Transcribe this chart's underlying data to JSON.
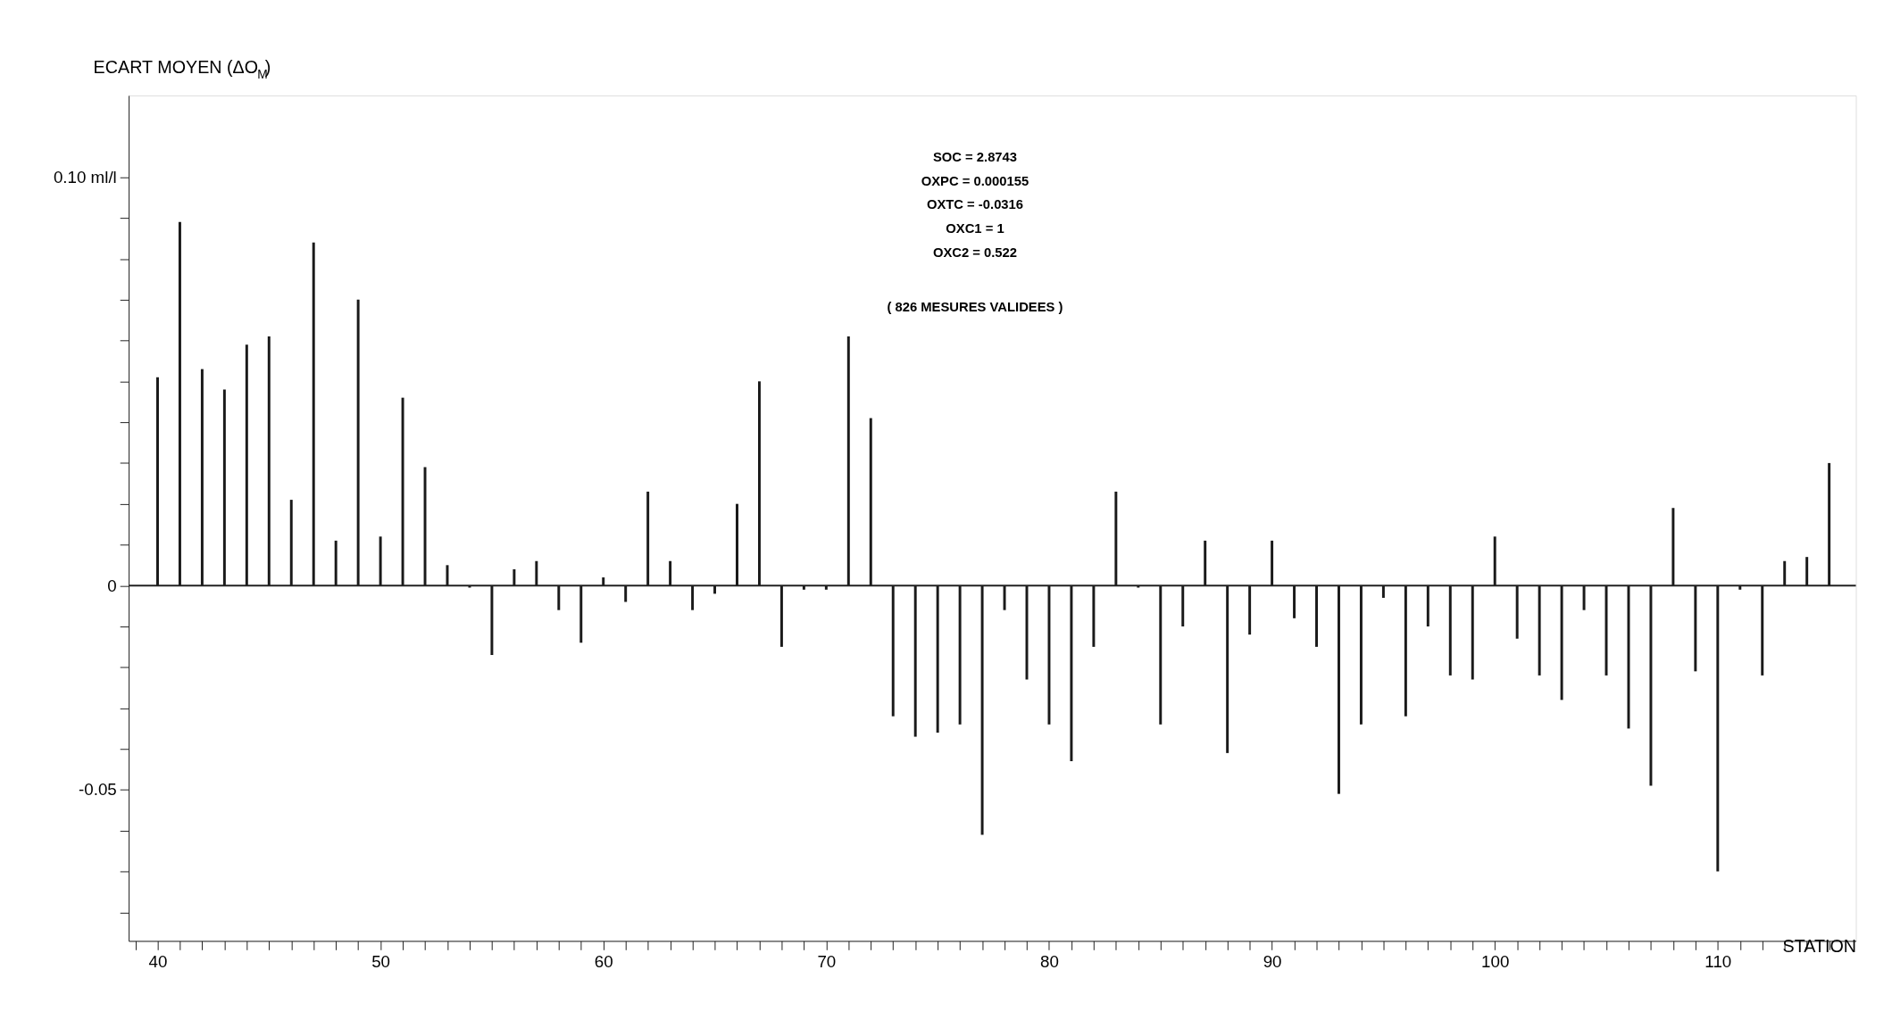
{
  "chart_data": {
    "type": "bar",
    "xlabel": "STATION",
    "ylabel": "ECART MOYEN (ΔO$_{M}$)",
    "annotations": [
      "SOC = 2.8743",
      "OXPC = 0.000155",
      "OXTC = -0.0316",
      "OXC1 = 1",
      "OXC2 = 0.522",
      "( 826 MESURES VALIDEES )"
    ],
    "x": [
      40,
      41,
      42,
      43,
      44,
      45,
      46,
      47,
      48,
      49,
      50,
      51,
      52,
      53,
      54,
      55,
      56,
      57,
      58,
      59,
      60,
      61,
      62,
      63,
      64,
      65,
      66,
      67,
      68,
      69,
      70,
      71,
      72,
      73,
      74,
      75,
      76,
      77,
      78,
      79,
      80,
      81,
      82,
      83,
      84,
      85,
      86,
      87,
      88,
      89,
      90,
      91,
      92,
      93,
      94,
      95,
      96,
      97,
      98,
      99,
      100,
      101,
      102,
      103,
      104,
      105,
      106,
      107,
      108,
      109,
      110,
      111,
      112,
      113,
      114,
      115
    ],
    "values": [
      0.051,
      0.089,
      0.053,
      0.048,
      0.059,
      0.061,
      0.021,
      0.084,
      0.011,
      0.07,
      0.012,
      0.046,
      0.029,
      0.005,
      -0.0005,
      -0.017,
      0.004,
      0.006,
      -0.006,
      -0.014,
      0.002,
      -0.004,
      0.023,
      0.006,
      -0.006,
      -0.002,
      0.02,
      0.05,
      -0.015,
      -0.001,
      -0.001,
      0.061,
      0.041,
      -0.032,
      -0.037,
      -0.036,
      -0.034,
      -0.061,
      -0.006,
      -0.023,
      -0.034,
      -0.043,
      -0.015,
      0.023,
      -0.0005,
      -0.034,
      -0.01,
      0.011,
      -0.041,
      -0.012,
      0.011,
      -0.008,
      -0.015,
      -0.051,
      -0.034,
      -0.003,
      -0.032,
      -0.01,
      -0.022,
      -0.023,
      0.012,
      -0.013,
      -0.022,
      -0.028,
      -0.006,
      -0.022,
      -0.035,
      -0.049,
      0.019,
      -0.021,
      -0.07,
      -0.001,
      -0.022,
      0.006,
      0.007,
      0.03
    ],
    "color": "#1a1a1a",
    "xlim": [
      38.9,
      116
    ],
    "xticks": [
      {
        "value": 39,
        "label": null
      },
      40,
      {
        "value": 41,
        "label": null
      },
      {
        "value": 42,
        "label": null
      },
      {
        "value": 43,
        "label": null
      },
      {
        "value": 44,
        "label": null
      },
      {
        "value": 45,
        "label": null
      },
      {
        "value": 46,
        "label": null
      },
      {
        "value": 47,
        "label": null
      },
      {
        "value": 48,
        "label": null
      },
      {
        "value": 49,
        "label": null
      },
      50,
      {
        "value": 51,
        "label": null
      },
      {
        "value": 52,
        "label": null
      },
      {
        "value": 53,
        "label": null
      },
      {
        "value": 54,
        "label": null
      },
      {
        "value": 55,
        "label": null
      },
      {
        "value": 56,
        "label": null
      },
      {
        "value": 57,
        "label": null
      },
      {
        "value": 58,
        "label": null
      },
      {
        "value": 59,
        "label": null
      },
      60,
      {
        "value": 61,
        "label": null
      },
      {
        "value": 62,
        "label": null
      },
      {
        "value": 63,
        "label": null
      },
      {
        "value": 64,
        "label": null
      },
      {
        "value": 65,
        "label": null
      },
      {
        "value": 66,
        "label": null
      },
      {
        "value": 67,
        "label": null
      },
      {
        "value": 68,
        "label": null
      },
      {
        "value": 69,
        "label": null
      },
      70,
      {
        "value": 71,
        "label": null
      },
      {
        "value": 72,
        "label": null
      },
      {
        "value": 73,
        "label": null
      },
      {
        "value": 74,
        "label": null
      },
      {
        "value": 75,
        "label": null
      },
      {
        "value": 76,
        "label": null
      },
      {
        "value": 77,
        "label": null
      },
      {
        "value": 78,
        "label": null
      },
      {
        "value": 79,
        "label": null
      },
      80,
      {
        "value": 81,
        "label": null
      },
      {
        "value": 82,
        "label": null
      },
      {
        "value": 83,
        "label": null
      },
      {
        "value": 84,
        "label": null
      },
      {
        "value": 85,
        "label": null
      },
      {
        "value": 86,
        "label": null
      },
      {
        "value": 87,
        "label": null
      },
      {
        "value": 88,
        "label": null
      },
      {
        "value": 89,
        "label": null
      },
      90,
      {
        "value": 91,
        "label": null
      },
      {
        "value": 92,
        "label": null
      },
      {
        "value": 93,
        "label": null
      },
      {
        "value": 94,
        "label": null
      },
      {
        "value": 95,
        "label": null
      },
      {
        "value": 96,
        "label": null
      },
      {
        "value": 97,
        "label": null
      },
      {
        "value": 98,
        "label": null
      },
      {
        "value": 99,
        "label": null
      },
      100,
      {
        "value": 101,
        "label": null
      },
      {
        "value": 102,
        "label": null
      },
      {
        "value": 103,
        "label": null
      },
      {
        "value": 104,
        "label": null
      },
      {
        "value": 105,
        "label": null
      },
      {
        "value": 106,
        "label": null
      },
      {
        "value": 107,
        "label": null
      },
      {
        "value": 108,
        "label": null
      },
      {
        "value": 109,
        "label": null
      },
      110,
      {
        "value": 111,
        "label": null
      },
      {
        "value": 112,
        "label": null
      },
      {
        "value": 113,
        "label": null
      },
      {
        "value": 114,
        "label": null
      },
      {
        "value": 115,
        "label": null
      }
    ],
    "ylim": [
      -0.087,
      0.12
    ],
    "yticks": [
      {
        "value": -0.08,
        "label": null
      },
      {
        "value": -0.07,
        "label": null
      },
      {
        "value": -0.06,
        "label": null
      },
      -0.05,
      {
        "value": -0.04,
        "label": null
      },
      {
        "value": -0.03,
        "label": null
      },
      {
        "value": -0.02,
        "label": null
      },
      {
        "value": -0.01,
        "label": null
      },
      0,
      {
        "value": 0.01,
        "label": null
      },
      {
        "value": 0.02,
        "label": null
      },
      {
        "value": 0.03,
        "label": null
      },
      {
        "value": 0.04,
        "label": null
      },
      {
        "value": 0.05,
        "label": null
      },
      {
        "value": 0.06,
        "label": null
      },
      {
        "value": 0.07,
        "label": null
      },
      {
        "value": 0.08,
        "label": null
      },
      {
        "value": 0.09,
        "label": null
      },
      {
        "value": 0.1,
        "label": "0.10 ml/l"
      }
    ],
    "ref_lines": [
      {
        "axis": "y",
        "value": 0
      }
    ],
    "grid": false
  }
}
